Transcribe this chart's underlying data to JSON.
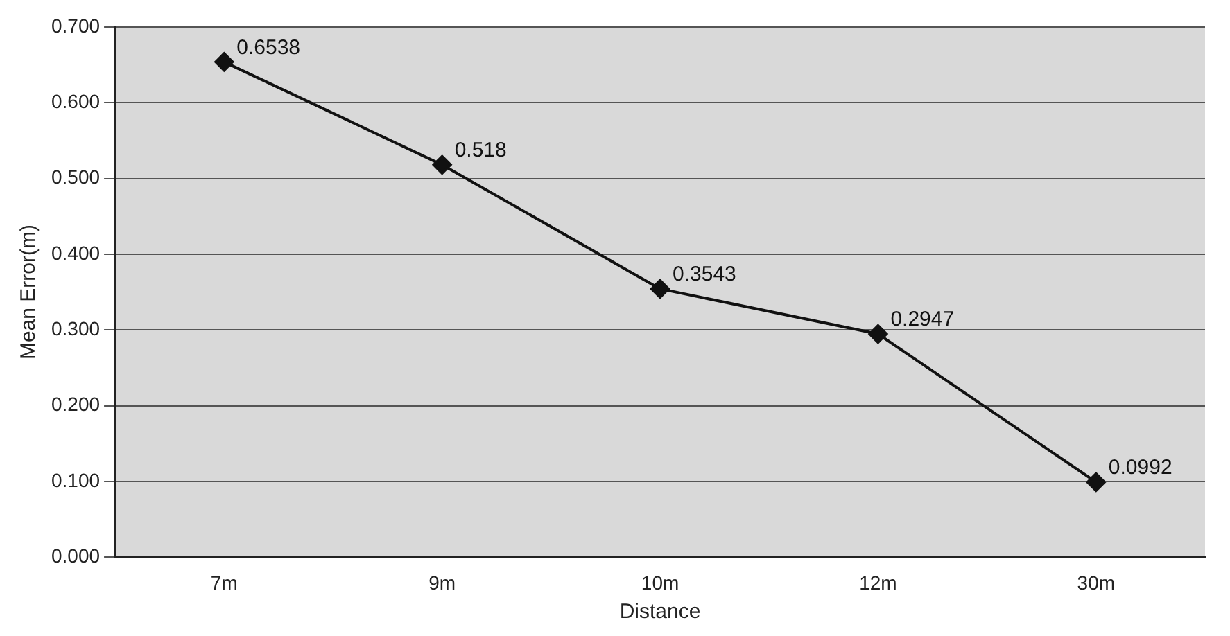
{
  "chart_data": {
    "type": "line",
    "xlabel": "Distance",
    "ylabel": "Mean Error(m)",
    "categories": [
      "7m",
      "9m",
      "10m",
      "12m",
      "30m"
    ],
    "values": [
      0.6538,
      0.518,
      0.3543,
      0.2947,
      0.0992
    ],
    "color": "#111111",
    "marker": "diamond",
    "data_labels": true,
    "grid": "y",
    "legend": false,
    "ylim": [
      0,
      0.7
    ],
    "yticks": [
      {
        "value": 0,
        "label": "0.000"
      },
      {
        "value": 0.1,
        "label": "0.100"
      },
      {
        "value": 0.2,
        "label": "0.200"
      },
      {
        "value": 0.3,
        "label": "0.300"
      },
      {
        "value": 0.4,
        "label": "0.400"
      },
      {
        "value": 0.5,
        "label": "0.500"
      },
      {
        "value": 0.6,
        "label": "0.600"
      },
      {
        "value": 0.7,
        "label": "0.700"
      }
    ]
  }
}
